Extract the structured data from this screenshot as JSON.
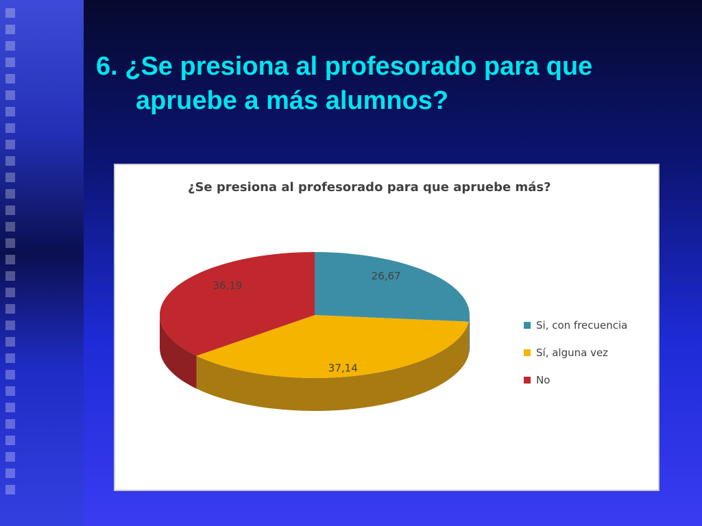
{
  "slide": {
    "title_line1": "6. ¿Se presiona al profesorado para que",
    "title_line2": "apruebe a más alumnos?"
  },
  "chart_data": {
    "type": "pie",
    "title": "¿Se presiona al profesorado para que apruebe más?",
    "categories": [
      "Si, con frecuencia",
      "Sí, alguna vez",
      "No"
    ],
    "values": [
      26.67,
      37.14,
      36.19
    ],
    "labels": [
      "26,67",
      "37,14",
      "36,19"
    ],
    "colors": [
      "#3b8ea5",
      "#f5b400",
      "#c0282d"
    ],
    "side_colors": [
      "#2a6b7d",
      "#a87a12",
      "#8e1f22"
    ],
    "legend_position": "right",
    "style": "3d"
  }
}
